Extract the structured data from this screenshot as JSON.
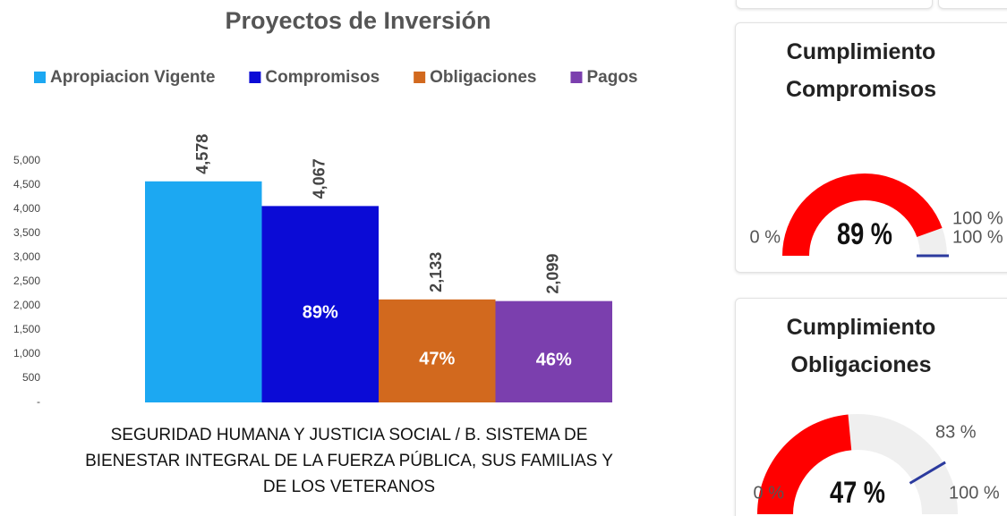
{
  "chart_data": [
    {
      "type": "bar",
      "title": "Proyectos de Inversión",
      "categories": [
        "SEGURIDAD HUMANA Y JUSTICIA SOCIAL / B. SISTEMA DE BIENESTAR INTEGRAL DE LA FUERZA PÚBLICA, SUS FAMILIAS Y DE LOS VETERANOS"
      ],
      "series": [
        {
          "name": "Apropiacion Vigente",
          "color": "#1ca8f2",
          "values": [
            4578
          ],
          "value_labels": [
            "4,578"
          ]
        },
        {
          "name": "Compromisos",
          "color": "#0b0bd6",
          "values": [
            4067
          ],
          "value_labels": [
            "4,067"
          ],
          "share_labels": [
            "89%"
          ]
        },
        {
          "name": "Obligaciones",
          "color": "#d2691e",
          "values": [
            2133
          ],
          "value_labels": [
            "2,133"
          ],
          "share_labels": [
            "47%"
          ]
        },
        {
          "name": "Pagos",
          "color": "#7b3fae",
          "values": [
            2099
          ],
          "value_labels": [
            "2,099"
          ],
          "share_labels": [
            "46%"
          ]
        }
      ],
      "ylim": [
        0,
        5000
      ],
      "yticks": [
        {
          "value": 0,
          "label": "-"
        },
        500,
        {
          "value": 1000,
          "label": "1,000"
        },
        {
          "value": 1500,
          "label": "1,500"
        },
        {
          "value": 2000,
          "label": "2,000"
        },
        {
          "value": 2500,
          "label": "2,500"
        },
        {
          "value": 3000,
          "label": "3,000"
        },
        {
          "value": 3500,
          "label": "3,500"
        },
        {
          "value": 4000,
          "label": "4,000"
        },
        {
          "value": 4500,
          "label": "4,500"
        },
        {
          "value": 5000,
          "label": "5,000"
        }
      ],
      "legend": "top"
    },
    {
      "type": "gauge",
      "title": "Cumplimiento Compromisos",
      "value": 89,
      "value_label": "89 %",
      "ylim": [
        0,
        100
      ],
      "yticks": [
        {
          "value": 0,
          "label": "0 %"
        },
        {
          "value": 100,
          "label": "100 %"
        }
      ],
      "target": 100,
      "target_label": "100 %",
      "color": "#ff0000",
      "track_color": "#efefef",
      "target_color": "#2b3a9e"
    },
    {
      "type": "gauge",
      "title": "Cumplimiento Obligaciones",
      "value": 47,
      "value_label": "47 %",
      "ylim": [
        0,
        100
      ],
      "yticks": [
        {
          "value": 0,
          "label": "0 %"
        },
        {
          "value": 100,
          "label": "100 %"
        }
      ],
      "target": 83,
      "target_label": "83 %",
      "color": "#ff0000",
      "track_color": "#efefef",
      "target_color": "#2b3a9e"
    }
  ]
}
